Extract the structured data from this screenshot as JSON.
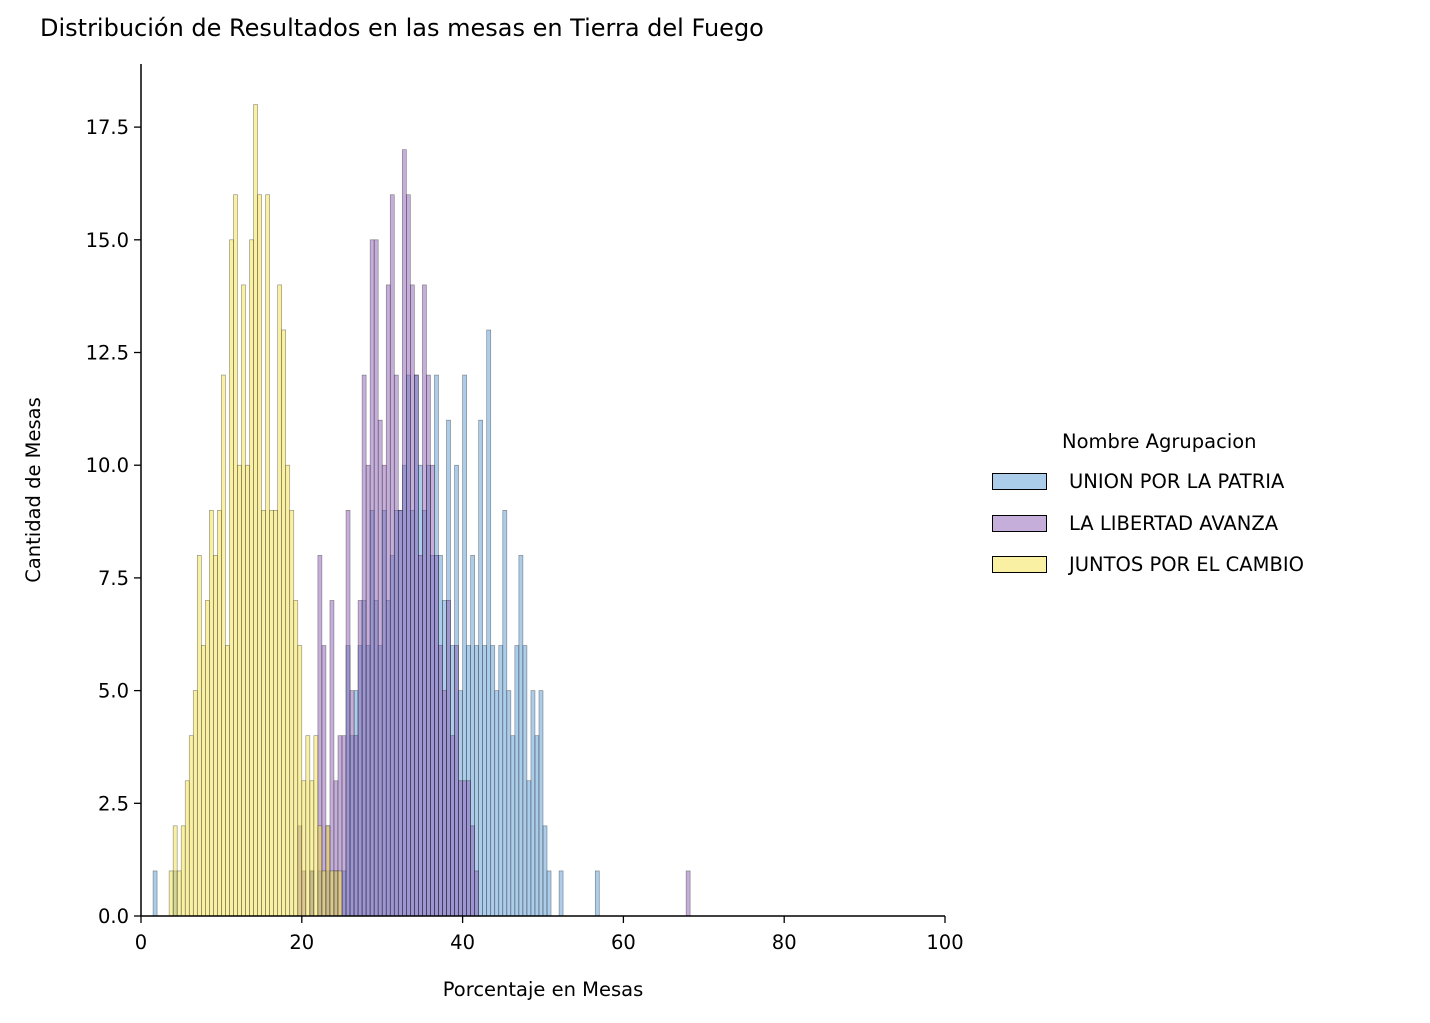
{
  "chart_data": {
    "type": "histogram",
    "title": "Distribución de Resultados en las mesas en Tierra del Fuego",
    "xlabel": "Porcentaje en Mesas",
    "ylabel": "Cantidad de Mesas",
    "xlim": [
      0,
      100
    ],
    "ylim": [
      0,
      18.9
    ],
    "xticks": [
      "0",
      "20",
      "40",
      "60",
      "80",
      "100"
    ],
    "yticks": [
      "0.0",
      "2.5",
      "5.0",
      "7.5",
      "10.0",
      "12.5",
      "15.0",
      "17.5"
    ],
    "bin_width": 0.5,
    "grid": false,
    "legend_position": "right",
    "legend_title": "Nombre Agrupacion",
    "series": [
      {
        "name": "UNION POR LA PATRIA",
        "color": "#5a9bd5",
        "bins": [
          [
            1.5,
            1
          ],
          [
            4,
            1
          ],
          [
            21,
            1
          ],
          [
            22,
            1
          ],
          [
            23,
            1
          ],
          [
            24,
            1
          ],
          [
            25,
            1
          ],
          [
            25.5,
            6
          ],
          [
            26,
            4
          ],
          [
            26.5,
            5
          ],
          [
            27,
            6
          ],
          [
            27.5,
            7
          ],
          [
            28,
            6
          ],
          [
            28.5,
            9
          ],
          [
            29,
            7
          ],
          [
            29.5,
            6
          ],
          [
            30,
            9
          ],
          [
            30.5,
            7
          ],
          [
            31,
            8
          ],
          [
            31.5,
            9
          ],
          [
            32,
            9
          ],
          [
            32.5,
            10
          ],
          [
            33,
            12
          ],
          [
            33.5,
            9
          ],
          [
            34,
            12
          ],
          [
            34.5,
            10
          ],
          [
            35,
            9
          ],
          [
            35.5,
            10
          ],
          [
            36,
            8
          ],
          [
            36.5,
            12
          ],
          [
            37,
            8
          ],
          [
            37.5,
            7
          ],
          [
            38,
            11
          ],
          [
            38.5,
            6
          ],
          [
            39,
            10
          ],
          [
            39.5,
            5
          ],
          [
            40,
            12
          ],
          [
            40.5,
            6
          ],
          [
            41,
            8
          ],
          [
            41.5,
            6
          ],
          [
            42,
            11
          ],
          [
            42.5,
            6
          ],
          [
            43,
            13
          ],
          [
            43.5,
            6
          ],
          [
            44,
            5
          ],
          [
            44.5,
            6
          ],
          [
            45,
            9
          ],
          [
            45.5,
            5
          ],
          [
            46,
            4
          ],
          [
            46.5,
            6
          ],
          [
            47,
            8
          ],
          [
            47.5,
            6
          ],
          [
            48,
            3
          ],
          [
            48.5,
            5
          ],
          [
            49,
            4
          ],
          [
            49.5,
            5
          ],
          [
            50,
            2
          ],
          [
            50.5,
            1
          ],
          [
            52,
            1
          ],
          [
            56.5,
            1
          ]
        ]
      },
      {
        "name": "LA LIBERTAD AVANZA",
        "color": "#8b5fb5",
        "bins": [
          [
            19.5,
            2
          ],
          [
            20,
            1
          ],
          [
            21,
            1
          ],
          [
            22,
            8
          ],
          [
            22.5,
            6
          ],
          [
            23,
            2
          ],
          [
            23.5,
            7
          ],
          [
            24,
            3
          ],
          [
            24.5,
            4
          ],
          [
            25,
            4
          ],
          [
            25.5,
            9
          ],
          [
            26,
            5
          ],
          [
            26.5,
            4
          ],
          [
            27,
            7
          ],
          [
            27.5,
            12
          ],
          [
            28,
            10
          ],
          [
            28.5,
            15
          ],
          [
            29,
            15
          ],
          [
            29.5,
            11
          ],
          [
            30,
            10
          ],
          [
            30.5,
            14
          ],
          [
            31,
            16
          ],
          [
            31.5,
            12
          ],
          [
            32,
            9
          ],
          [
            32.5,
            17
          ],
          [
            33,
            16
          ],
          [
            33.5,
            14
          ],
          [
            34,
            12
          ],
          [
            34.5,
            8
          ],
          [
            35,
            14
          ],
          [
            35.5,
            12
          ],
          [
            36,
            10
          ],
          [
            36.5,
            8
          ],
          [
            37,
            6
          ],
          [
            37.5,
            5
          ],
          [
            38,
            7
          ],
          [
            38.5,
            4
          ],
          [
            39,
            6
          ],
          [
            39.5,
            3
          ],
          [
            40,
            3
          ],
          [
            40.5,
            3
          ],
          [
            41,
            2
          ],
          [
            41.5,
            1
          ],
          [
            67.8,
            1
          ]
        ]
      },
      {
        "name": "JUNTOS POR EL CAMBIO",
        "color": "#f5e14a",
        "bins": [
          [
            3.5,
            1
          ],
          [
            4,
            2
          ],
          [
            4.5,
            1
          ],
          [
            5,
            2
          ],
          [
            5.5,
            3
          ],
          [
            6,
            4
          ],
          [
            6.5,
            5
          ],
          [
            7,
            8
          ],
          [
            7.5,
            6
          ],
          [
            8,
            7
          ],
          [
            8.5,
            9
          ],
          [
            9,
            8
          ],
          [
            9.5,
            9
          ],
          [
            10,
            12
          ],
          [
            10.5,
            6
          ],
          [
            11,
            15
          ],
          [
            11.5,
            16
          ],
          [
            12,
            10
          ],
          [
            12.5,
            14
          ],
          [
            13,
            10
          ],
          [
            13.5,
            15
          ],
          [
            14,
            18
          ],
          [
            14.5,
            16
          ],
          [
            15,
            9
          ],
          [
            15.5,
            16
          ],
          [
            16,
            9
          ],
          [
            16.5,
            9
          ],
          [
            17,
            14
          ],
          [
            17.5,
            13
          ],
          [
            18,
            10
          ],
          [
            18.5,
            9
          ],
          [
            19,
            7
          ],
          [
            19.5,
            6
          ],
          [
            20,
            3
          ],
          [
            20.5,
            4
          ],
          [
            21,
            3
          ],
          [
            21.5,
            4
          ],
          [
            22,
            2
          ],
          [
            22.5,
            1
          ],
          [
            23,
            2
          ],
          [
            23.5,
            1
          ],
          [
            24,
            1
          ],
          [
            24.5,
            1
          ]
        ]
      }
    ]
  }
}
